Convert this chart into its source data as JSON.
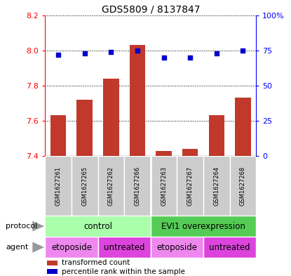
{
  "title": "GDS5809 / 8137847",
  "samples": [
    "GSM1627261",
    "GSM1627265",
    "GSM1627262",
    "GSM1627266",
    "GSM1627263",
    "GSM1627267",
    "GSM1627264",
    "GSM1627268"
  ],
  "transformed_counts": [
    7.63,
    7.72,
    7.84,
    8.03,
    7.43,
    7.44,
    7.63,
    7.73
  ],
  "percentile_ranks": [
    72,
    73,
    74,
    75,
    70,
    70,
    73,
    75
  ],
  "ylim_left": [
    7.4,
    8.2
  ],
  "ylim_right": [
    0,
    100
  ],
  "yticks_left": [
    7.4,
    7.6,
    7.8,
    8.0,
    8.2
  ],
  "yticks_right": [
    0,
    25,
    50,
    75,
    100
  ],
  "bar_color": "#C0392B",
  "dot_color": "#0000CC",
  "protocol_color_light": "#AAFFAA",
  "protocol_color_dark": "#55CC55",
  "agent_color_light": "#EE88EE",
  "agent_color_dark": "#DD44DD",
  "gray_color": "#CCCCCC",
  "legend_red": "transformed count",
  "legend_blue": "percentile rank within the sample",
  "bar_width": 0.6
}
